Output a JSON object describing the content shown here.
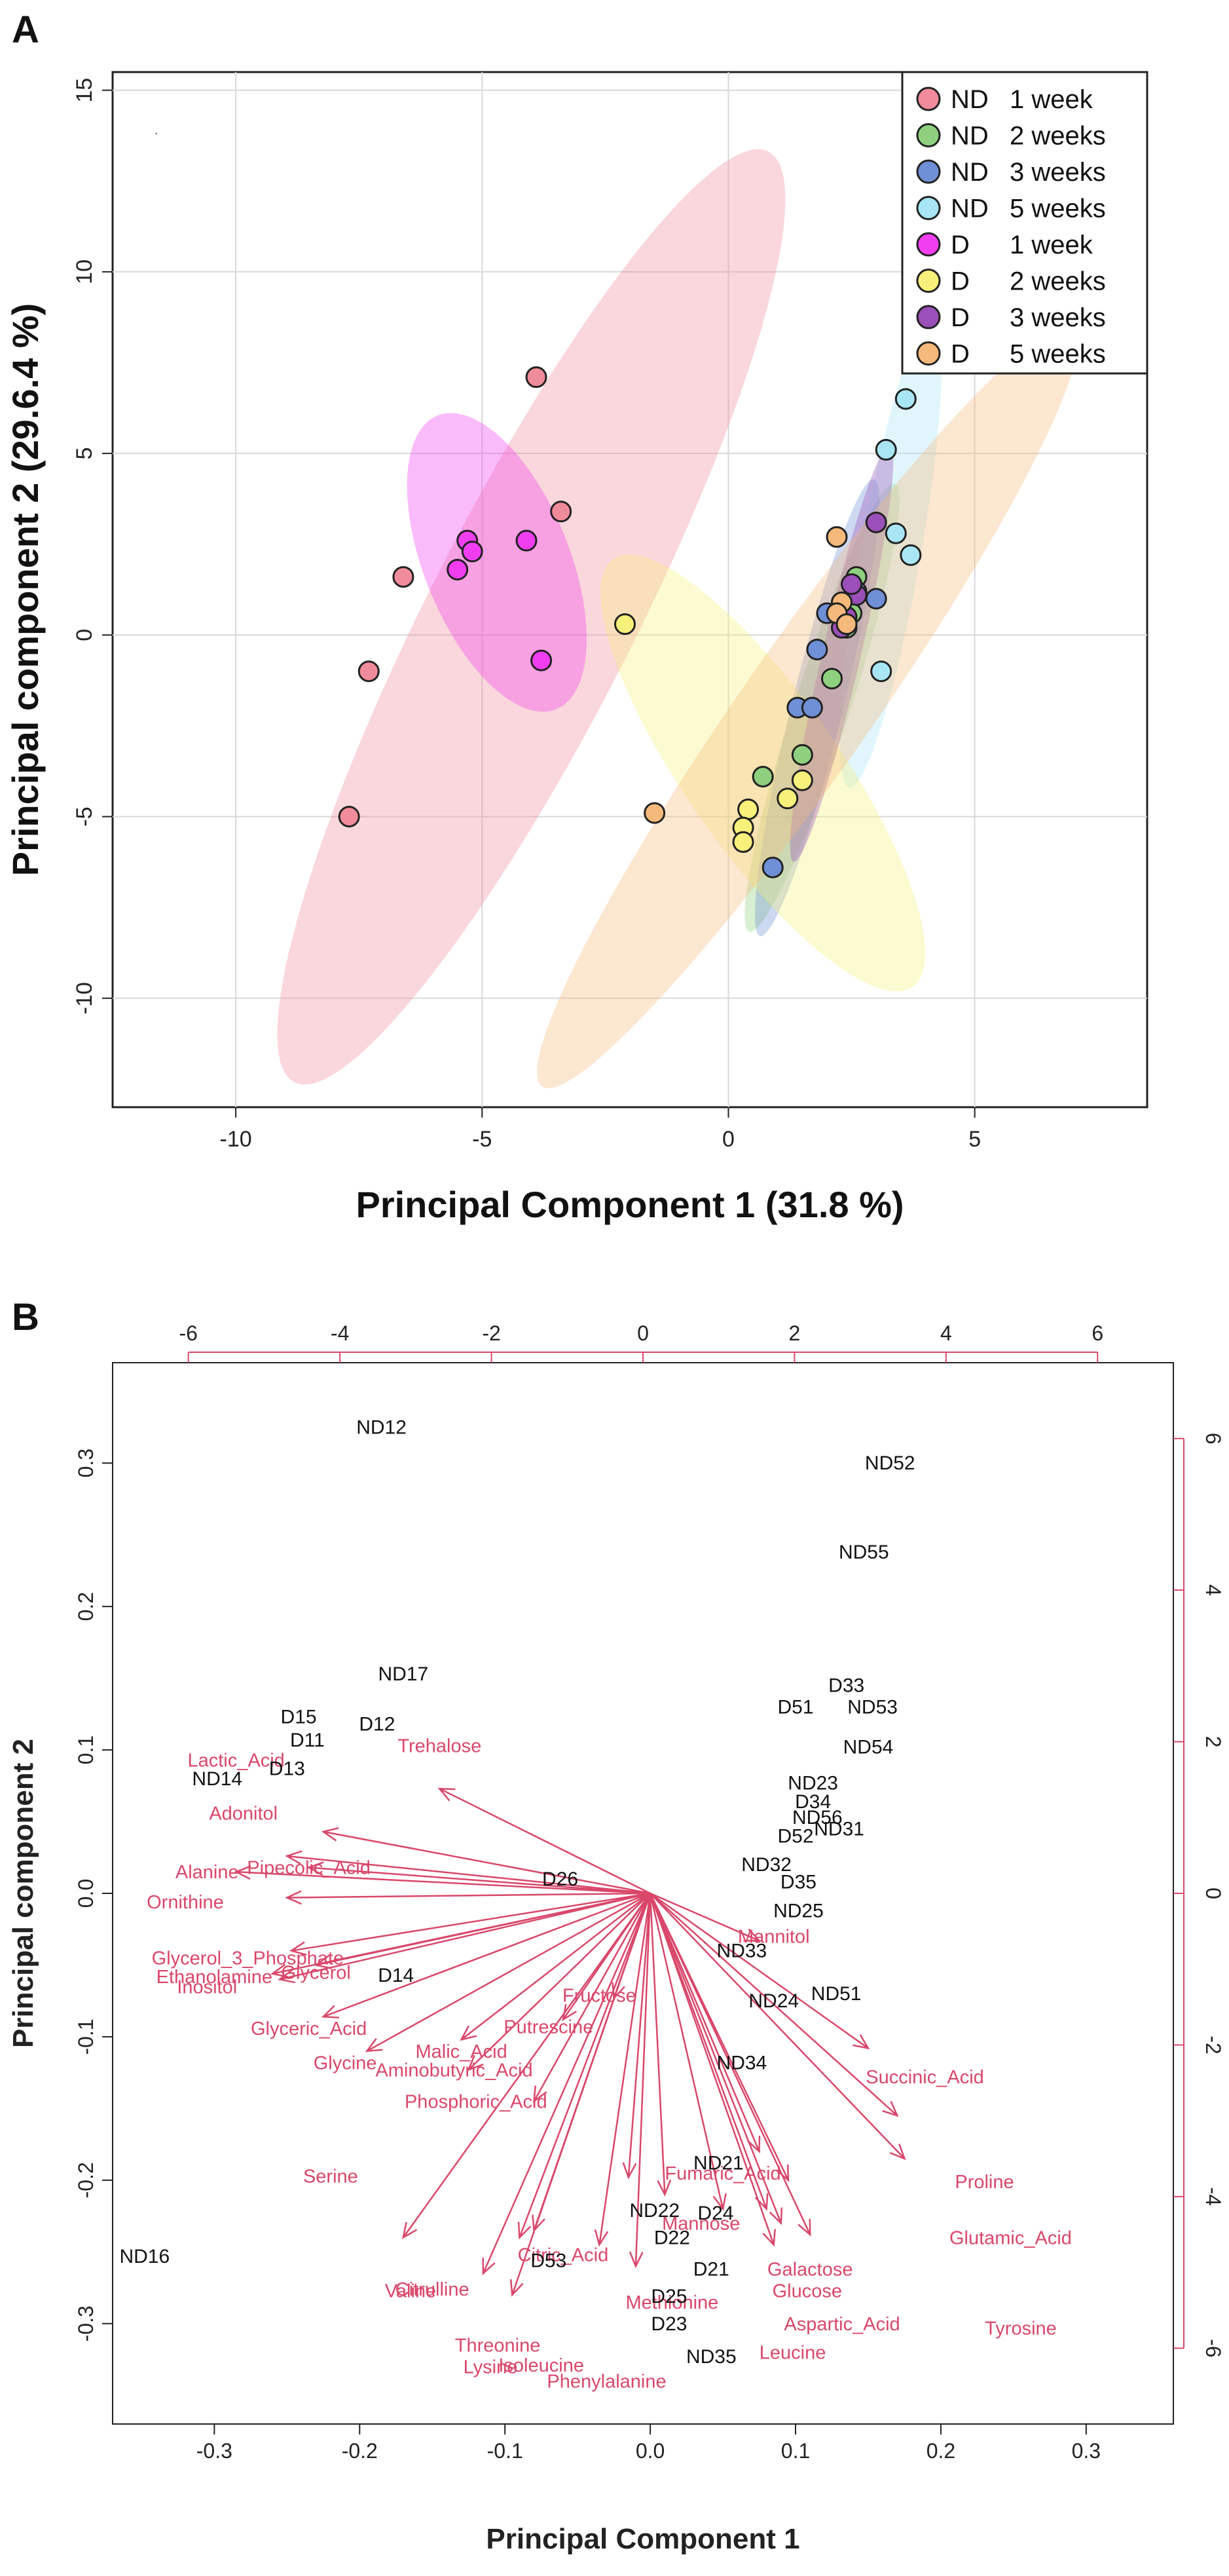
{
  "panelA": {
    "label": "A",
    "xlabel": "Principal Component 1 (31.8 %)",
    "ylabel": "Principal component 2 (29.6.4 %)",
    "xticks": [
      -10,
      -5,
      0,
      5
    ],
    "yticks": [
      15,
      10,
      5,
      0,
      -5,
      -10
    ],
    "legend": [
      {
        "group": "ND",
        "duration": "1 week",
        "color": "#f08b9b"
      },
      {
        "group": "ND",
        "duration": "2 weeks",
        "color": "#8fd07f"
      },
      {
        "group": "ND",
        "duration": "3 weeks",
        "color": "#6f8fd6"
      },
      {
        "group": "ND",
        "duration": "5 weeks",
        "color": "#a9e6f5"
      },
      {
        "group": "D",
        "duration": "1 week",
        "color": "#f03df0"
      },
      {
        "group": "D",
        "duration": "2 weeks",
        "color": "#f7f07a"
      },
      {
        "group": "D",
        "duration": "3 weeks",
        "color": "#9b4fb8"
      },
      {
        "group": "D",
        "duration": "5 weeks",
        "color": "#f5b97b"
      }
    ]
  },
  "panelB": {
    "label": "B",
    "xlabel": "Principal Component 1",
    "ylabel": "Principal component 2",
    "xticks_bottom": [
      "-0.3",
      "-0.2",
      "-0.1",
      "0.0",
      "0.1",
      "0.2",
      "0.3"
    ],
    "yticks_left": [
      "0.3",
      "0.2",
      "0.1",
      "0.0",
      "-0.1",
      "-0.2",
      "-0.3"
    ],
    "xticks_top": [
      "-6",
      "-4",
      "-2",
      "0",
      "2",
      "4",
      "6"
    ],
    "yticks_right": [
      "6",
      "4",
      "2",
      "0",
      "-2",
      "-4",
      "-6"
    ]
  },
  "chart_data": [
    {
      "type": "scatter",
      "title": "",
      "xlabel": "Principal Component 1 (31.8 %)",
      "ylabel": "Principal component 2 (29.6.4 %)",
      "xlim": [
        -12.5,
        8.5
      ],
      "ylim": [
        -13,
        15.5
      ],
      "grid": true,
      "legend": "top-right",
      "series": [
        {
          "name": "ND 1 week",
          "color": "#f08b9b",
          "x": [
            -3.9,
            -3.4,
            -6.6,
            -7.3,
            -7.7
          ],
          "y": [
            7.1,
            3.4,
            1.6,
            -1.0,
            -5.0
          ],
          "ellipse": {
            "cx": -4.0,
            "cy": 0.5,
            "rx": 12.2,
            "ry": 2.4,
            "angle_deg": 63
          }
        },
        {
          "name": "ND 2 weeks",
          "color": "#8fd07f",
          "x": [
            2.4,
            2.5,
            2.1,
            1.5,
            0.7,
            2.6
          ],
          "y": [
            0.2,
            0.6,
            -1.2,
            -3.3,
            -3.9,
            1.6
          ],
          "ellipse": {
            "cx": 1.9,
            "cy": -2.0,
            "rx": 5.5,
            "ry": 0.65,
            "angle_deg": 72
          }
        },
        {
          "name": "ND 3 weeks",
          "color": "#6f8fd6",
          "x": [
            1.4,
            1.7,
            1.8,
            2.0,
            2.6,
            0.9,
            3.0
          ],
          "y": [
            -2.0,
            -2.0,
            -0.4,
            0.6,
            1.2,
            -6.4,
            1.0
          ],
          "ellipse": {
            "cx": 1.8,
            "cy": -2.0,
            "rx": 5.5,
            "ry": 0.6,
            "angle_deg": 76
          }
        },
        {
          "name": "ND 5 weeks",
          "color": "#a9e6f5",
          "x": [
            3.6,
            3.2,
            3.4,
            3.7,
            3.1
          ],
          "y": [
            6.5,
            5.1,
            2.8,
            2.2,
            -1.0
          ],
          "ellipse": {
            "cx": 3.3,
            "cy": 2.3,
            "rx": 5.6,
            "ry": 0.7,
            "angle_deg": 80
          }
        },
        {
          "name": "D 1 week",
          "color": "#f03df0",
          "x": [
            -5.3,
            -5.2,
            -5.5,
            -4.1,
            -3.8
          ],
          "y": [
            2.6,
            2.3,
            1.8,
            2.6,
            -0.7
          ],
          "ellipse": {
            "cx": -4.7,
            "cy": 2.0,
            "rx": 3.7,
            "ry": 1.7,
            "angle_deg": 112
          }
        },
        {
          "name": "D 2 weeks",
          "color": "#f7f07a",
          "x": [
            -2.1,
            0.4,
            0.3,
            0.3,
            1.2,
            1.5
          ],
          "y": [
            0.3,
            -4.8,
            -5.3,
            -5.7,
            -4.5,
            -4.0
          ],
          "ellipse": {
            "cx": 0.7,
            "cy": -3.8,
            "rx": 6.1,
            "ry": 1.8,
            "angle_deg": -55
          }
        },
        {
          "name": "D 3 weeks",
          "color": "#9b4fb8",
          "x": [
            2.4,
            2.6,
            2.3,
            2.5,
            3.0
          ],
          "y": [
            0.5,
            1.1,
            0.2,
            1.4,
            3.1
          ],
          "ellipse": {
            "cx": 2.3,
            "cy": -0.5,
            "rx": 5.0,
            "ry": 0.45,
            "angle_deg": 77
          }
        },
        {
          "name": "D 5 weeks",
          "color": "#f5b97b",
          "x": [
            2.2,
            2.3,
            2.2,
            2.4,
            -1.5
          ],
          "y": [
            2.7,
            0.9,
            0.6,
            0.3,
            -4.9
          ],
          "ellipse": {
            "cx": 1.6,
            "cy": -2.0,
            "rx": 10.8,
            "ry": 1.5,
            "angle_deg": 55
          }
        }
      ]
    },
    {
      "type": "scatter",
      "subtype": "biplot",
      "title": "",
      "xlabel": "Principal Component 1",
      "ylabel": "Principal component 2",
      "xlim": [
        -0.37,
        0.36
      ],
      "ylim": [
        -0.37,
        0.37
      ],
      "secondary_xlim": [
        -7.0,
        7.0
      ],
      "secondary_ylim": [
        -7.0,
        7.0
      ],
      "samples": [
        {
          "label": "ND12",
          "x": -0.185,
          "y": 0.325
        },
        {
          "label": "ND52",
          "x": 0.165,
          "y": 0.3
        },
        {
          "label": "ND55",
          "x": 0.147,
          "y": 0.238
        },
        {
          "label": "ND17",
          "x": -0.17,
          "y": 0.153
        },
        {
          "label": "D15",
          "x": -0.242,
          "y": 0.123
        },
        {
          "label": "D12",
          "x": -0.188,
          "y": 0.118
        },
        {
          "label": "D11",
          "x": -0.236,
          "y": 0.107
        },
        {
          "label": "D13",
          "x": -0.25,
          "y": 0.087
        },
        {
          "label": "ND14",
          "x": -0.298,
          "y": 0.08
        },
        {
          "label": "D33",
          "x": 0.135,
          "y": 0.145
        },
        {
          "label": "D51",
          "x": 0.1,
          "y": 0.13
        },
        {
          "label": "ND53",
          "x": 0.153,
          "y": 0.13
        },
        {
          "label": "ND54",
          "x": 0.15,
          "y": 0.102
        },
        {
          "label": "ND23",
          "x": 0.112,
          "y": 0.077
        },
        {
          "label": "D34",
          "x": 0.112,
          "y": 0.064
        },
        {
          "label": "ND56",
          "x": 0.115,
          "y": 0.053
        },
        {
          "label": "ND31",
          "x": 0.13,
          "y": 0.045
        },
        {
          "label": "D52",
          "x": 0.1,
          "y": 0.04
        },
        {
          "label": "ND32",
          "x": 0.08,
          "y": 0.02
        },
        {
          "label": "D35",
          "x": 0.102,
          "y": 0.008
        },
        {
          "label": "ND25",
          "x": 0.102,
          "y": -0.012
        },
        {
          "label": "D26",
          "x": -0.062,
          "y": 0.01
        },
        {
          "label": "ND33",
          "x": 0.063,
          "y": -0.04
        },
        {
          "label": "ND51",
          "x": 0.128,
          "y": -0.07
        },
        {
          "label": "ND24",
          "x": 0.085,
          "y": -0.075
        },
        {
          "label": "D14",
          "x": -0.175,
          "y": -0.057
        },
        {
          "label": "ND34",
          "x": 0.063,
          "y": -0.118
        },
        {
          "label": "ND21",
          "x": 0.047,
          "y": -0.188
        },
        {
          "label": "ND22",
          "x": 0.003,
          "y": -0.221
        },
        {
          "label": "D24",
          "x": 0.045,
          "y": -0.223
        },
        {
          "label": "D22",
          "x": 0.015,
          "y": -0.24
        },
        {
          "label": "D21",
          "x": 0.042,
          "y": -0.262
        },
        {
          "label": "D25",
          "x": 0.013,
          "y": -0.281
        },
        {
          "label": "D23",
          "x": 0.013,
          "y": -0.3
        },
        {
          "label": "D53",
          "x": -0.07,
          "y": -0.256
        },
        {
          "label": "ND35",
          "x": 0.042,
          "y": -0.323
        },
        {
          "label": "ND16",
          "x": -0.348,
          "y": -0.253
        }
      ],
      "loadings": [
        {
          "label": "Trehalose",
          "x": -0.145,
          "y": 0.073
        },
        {
          "label": "Lactic_Acid",
          "x": -0.225,
          "y": 0.043
        },
        {
          "label": "Adonitol",
          "x": -0.25,
          "y": 0.026
        },
        {
          "label": "Pipecolic_Acid",
          "x": -0.235,
          "y": 0.018
        },
        {
          "label": "Alanine",
          "x": -0.285,
          "y": 0.015
        },
        {
          "label": "Ornithine",
          "x": -0.25,
          "y": -0.003
        },
        {
          "label": "Glycerol_3_Phosphate",
          "x": -0.247,
          "y": -0.04
        },
        {
          "label": "Glycerol",
          "x": -0.23,
          "y": -0.05
        },
        {
          "label": "Ethanolamine",
          "x": -0.26,
          "y": -0.056
        },
        {
          "label": "Inositol",
          "x": -0.255,
          "y": -0.06
        },
        {
          "label": "Glyceric_Acid",
          "x": -0.225,
          "y": -0.086
        },
        {
          "label": "Glycine",
          "x": -0.195,
          "y": -0.11
        },
        {
          "label": "Malic_Acid",
          "x": -0.13,
          "y": -0.102
        },
        {
          "label": "Putrescine",
          "x": -0.06,
          "y": -0.088
        },
        {
          "label": "Fructose",
          "x": -0.025,
          "y": -0.073
        },
        {
          "label": "Aminobutyric_Acid",
          "x": -0.125,
          "y": -0.123
        },
        {
          "label": "Phosphoric_Acid",
          "x": -0.08,
          "y": -0.145
        },
        {
          "label": "Serine",
          "x": -0.17,
          "y": -0.24
        },
        {
          "label": "Valine",
          "x": -0.115,
          "y": -0.265
        },
        {
          "label": "Citrulline",
          "x": -0.09,
          "y": -0.24
        },
        {
          "label": "Isoleucine",
          "x": -0.035,
          "y": -0.245
        },
        {
          "label": "Threonine",
          "x": -0.095,
          "y": -0.28
        },
        {
          "label": "Lysine",
          "x": -0.08,
          "y": -0.235
        },
        {
          "label": "Phenylalanine",
          "x": -0.01,
          "y": -0.26
        },
        {
          "label": "Citric_Acid",
          "x": -0.015,
          "y": -0.198
        },
        {
          "label": "Methionine",
          "x": 0.01,
          "y": -0.21
        },
        {
          "label": "Mannose",
          "x": 0.05,
          "y": -0.22
        },
        {
          "label": "Fumaric_Acid",
          "x": 0.085,
          "y": -0.245
        },
        {
          "label": "Galactose",
          "x": 0.09,
          "y": -0.23
        },
        {
          "label": "Glucose",
          "x": 0.08,
          "y": -0.22
        },
        {
          "label": "Aspartic_Acid",
          "x": 0.095,
          "y": -0.2
        },
        {
          "label": "Leucine",
          "x": 0.075,
          "y": -0.18
        },
        {
          "label": "Tyrosine",
          "x": 0.11,
          "y": -0.238
        },
        {
          "label": "Glutamic_Acid",
          "x": 0.175,
          "y": -0.185
        },
        {
          "label": "Proline",
          "x": 0.17,
          "y": -0.155
        },
        {
          "label": "Succinic_Acid",
          "x": 0.15,
          "y": -0.108
        },
        {
          "label": "Mannitol",
          "x": 0.075,
          "y": -0.033
        }
      ]
    }
  ]
}
